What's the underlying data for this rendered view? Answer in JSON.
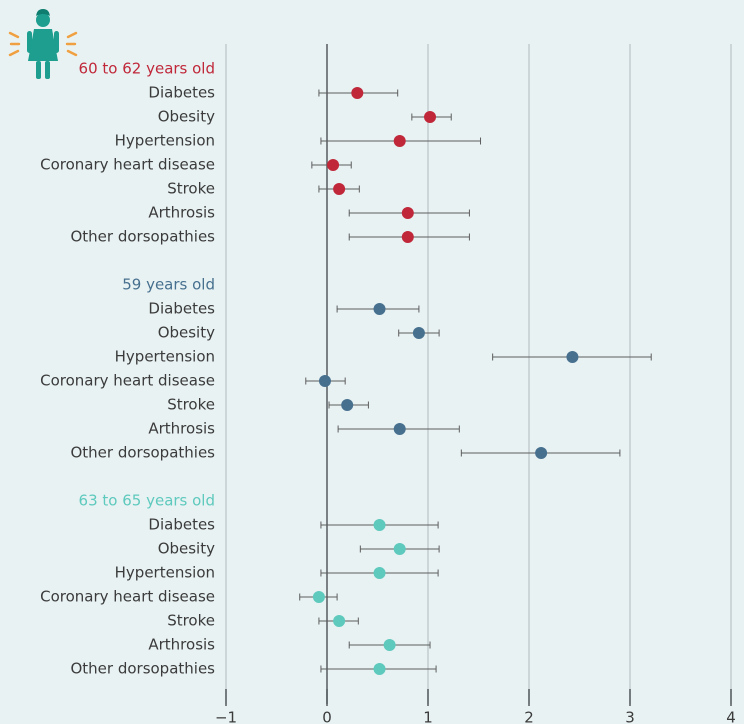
{
  "icon": "woman-icon",
  "chart_data": {
    "type": "scatter",
    "xlim": [
      -1,
      4
    ],
    "x_ticks": [
      "−1",
      "0",
      "1",
      "2",
      "3",
      "4"
    ],
    "grid": true,
    "colors": {
      "group1": "#c0283a",
      "group2": "#47708f",
      "group3": "#5ec9bd",
      "grid": "#c3cdd0",
      "zero_line": "#555b5f",
      "error_bar": "#5d5d5d",
      "label": "#3b3b3b",
      "icon": "#1d9e8f",
      "icon_rays": "#f0a040"
    },
    "groups": [
      {
        "label": "60 to 62 years old",
        "color_key": "group1",
        "items": [
          {
            "label": "Diabetes",
            "x": 0.3,
            "lo": -0.08,
            "hi": 0.7
          },
          {
            "label": "Obesity",
            "x": 1.02,
            "lo": 0.84,
            "hi": 1.23
          },
          {
            "label": "Hypertension",
            "x": 0.72,
            "lo": -0.06,
            "hi": 1.52
          },
          {
            "label": "Coronary heart disease",
            "x": 0.06,
            "lo": -0.15,
            "hi": 0.24
          },
          {
            "label": "Stroke",
            "x": 0.12,
            "lo": -0.08,
            "hi": 0.32
          },
          {
            "label": "Arthrosis",
            "x": 0.8,
            "lo": 0.22,
            "hi": 1.41
          },
          {
            "label": "Other dorsopathies",
            "x": 0.8,
            "lo": 0.22,
            "hi": 1.41
          }
        ]
      },
      {
        "label": "59 years old",
        "color_key": "group2",
        "items": [
          {
            "label": "Diabetes",
            "x": 0.52,
            "lo": 0.1,
            "hi": 0.91
          },
          {
            "label": "Obesity",
            "x": 0.91,
            "lo": 0.71,
            "hi": 1.11
          },
          {
            "label": "Hypertension",
            "x": 2.43,
            "lo": 1.64,
            "hi": 3.21
          },
          {
            "label": "Coronary heart disease",
            "x": -0.02,
            "lo": -0.21,
            "hi": 0.18
          },
          {
            "label": "Stroke",
            "x": 0.2,
            "lo": 0.02,
            "hi": 0.41
          },
          {
            "label": "Arthrosis",
            "x": 0.72,
            "lo": 0.11,
            "hi": 1.31
          },
          {
            "label": "Other dorsopathies",
            "x": 2.12,
            "lo": 1.33,
            "hi": 2.9
          }
        ]
      },
      {
        "label": "63 to 65 years old",
        "color_key": "group3",
        "items": [
          {
            "label": "Diabetes",
            "x": 0.52,
            "lo": -0.06,
            "hi": 1.1
          },
          {
            "label": "Obesity",
            "x": 0.72,
            "lo": 0.33,
            "hi": 1.11
          },
          {
            "label": "Hypertension",
            "x": 0.52,
            "lo": -0.06,
            "hi": 1.1
          },
          {
            "label": "Coronary heart disease",
            "x": -0.08,
            "lo": -0.27,
            "hi": 0.1
          },
          {
            "label": "Stroke",
            "x": 0.12,
            "lo": -0.08,
            "hi": 0.31
          },
          {
            "label": "Arthrosis",
            "x": 0.62,
            "lo": 0.22,
            "hi": 1.02
          },
          {
            "label": "Other dorsopathies",
            "x": 0.52,
            "lo": -0.06,
            "hi": 1.08
          }
        ]
      }
    ]
  }
}
